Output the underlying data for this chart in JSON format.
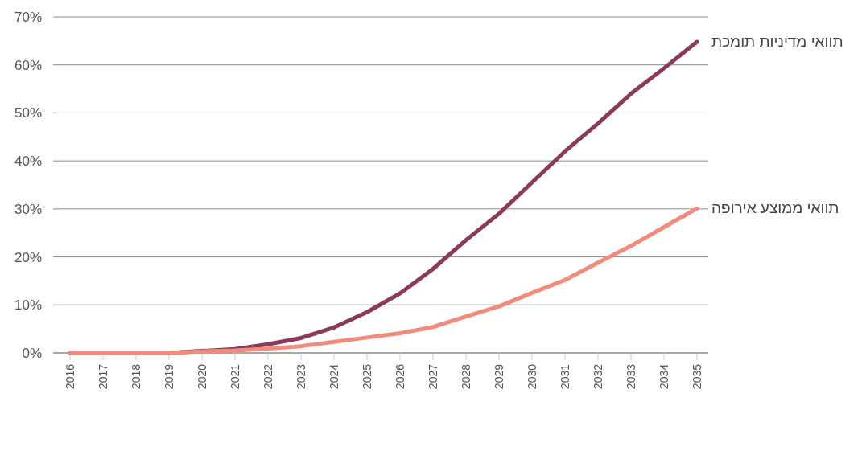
{
  "chart_data": {
    "type": "line",
    "categories": [
      "2016",
      "2017",
      "2018",
      "2019",
      "2020",
      "2021",
      "2022",
      "2023",
      "2024",
      "2025",
      "2026",
      "2027",
      "2028",
      "2029",
      "2030",
      "2031",
      "2032",
      "2033",
      "2034",
      "2035"
    ],
    "series": [
      {
        "name": "תוואי מדיניות תומכת",
        "color": "#8b3a5c",
        "values": [
          0,
          0,
          0,
          0,
          0.4,
          0.8,
          1.8,
          3.1,
          5.3,
          8.5,
          12.4,
          17.5,
          23.5,
          29,
          35.5,
          42,
          47.8,
          54,
          59.3,
          64.8
        ]
      },
      {
        "name": "תוואי ממוצע אירופה",
        "color": "#f28b7c",
        "values": [
          0,
          0,
          0,
          0,
          0.3,
          0.5,
          0.9,
          1.4,
          2.3,
          3.2,
          4.1,
          5.4,
          7.6,
          9.7,
          12.5,
          15.2,
          18.8,
          22.3,
          26.2,
          30.1
        ]
      }
    ],
    "ylim": [
      0,
      70
    ],
    "yticks": [
      {
        "value": 0,
        "label": "0%"
      },
      {
        "value": 10,
        "label": "10%"
      },
      {
        "value": 20,
        "label": "20%"
      },
      {
        "value": 30,
        "label": "30%"
      },
      {
        "value": 40,
        "label": "40%"
      },
      {
        "value": 50,
        "label": "50%"
      },
      {
        "value": 60,
        "label": "60%"
      },
      {
        "value": 70,
        "label": "70%"
      }
    ],
    "grid": "y",
    "line_style": "solid",
    "marker": "none"
  }
}
